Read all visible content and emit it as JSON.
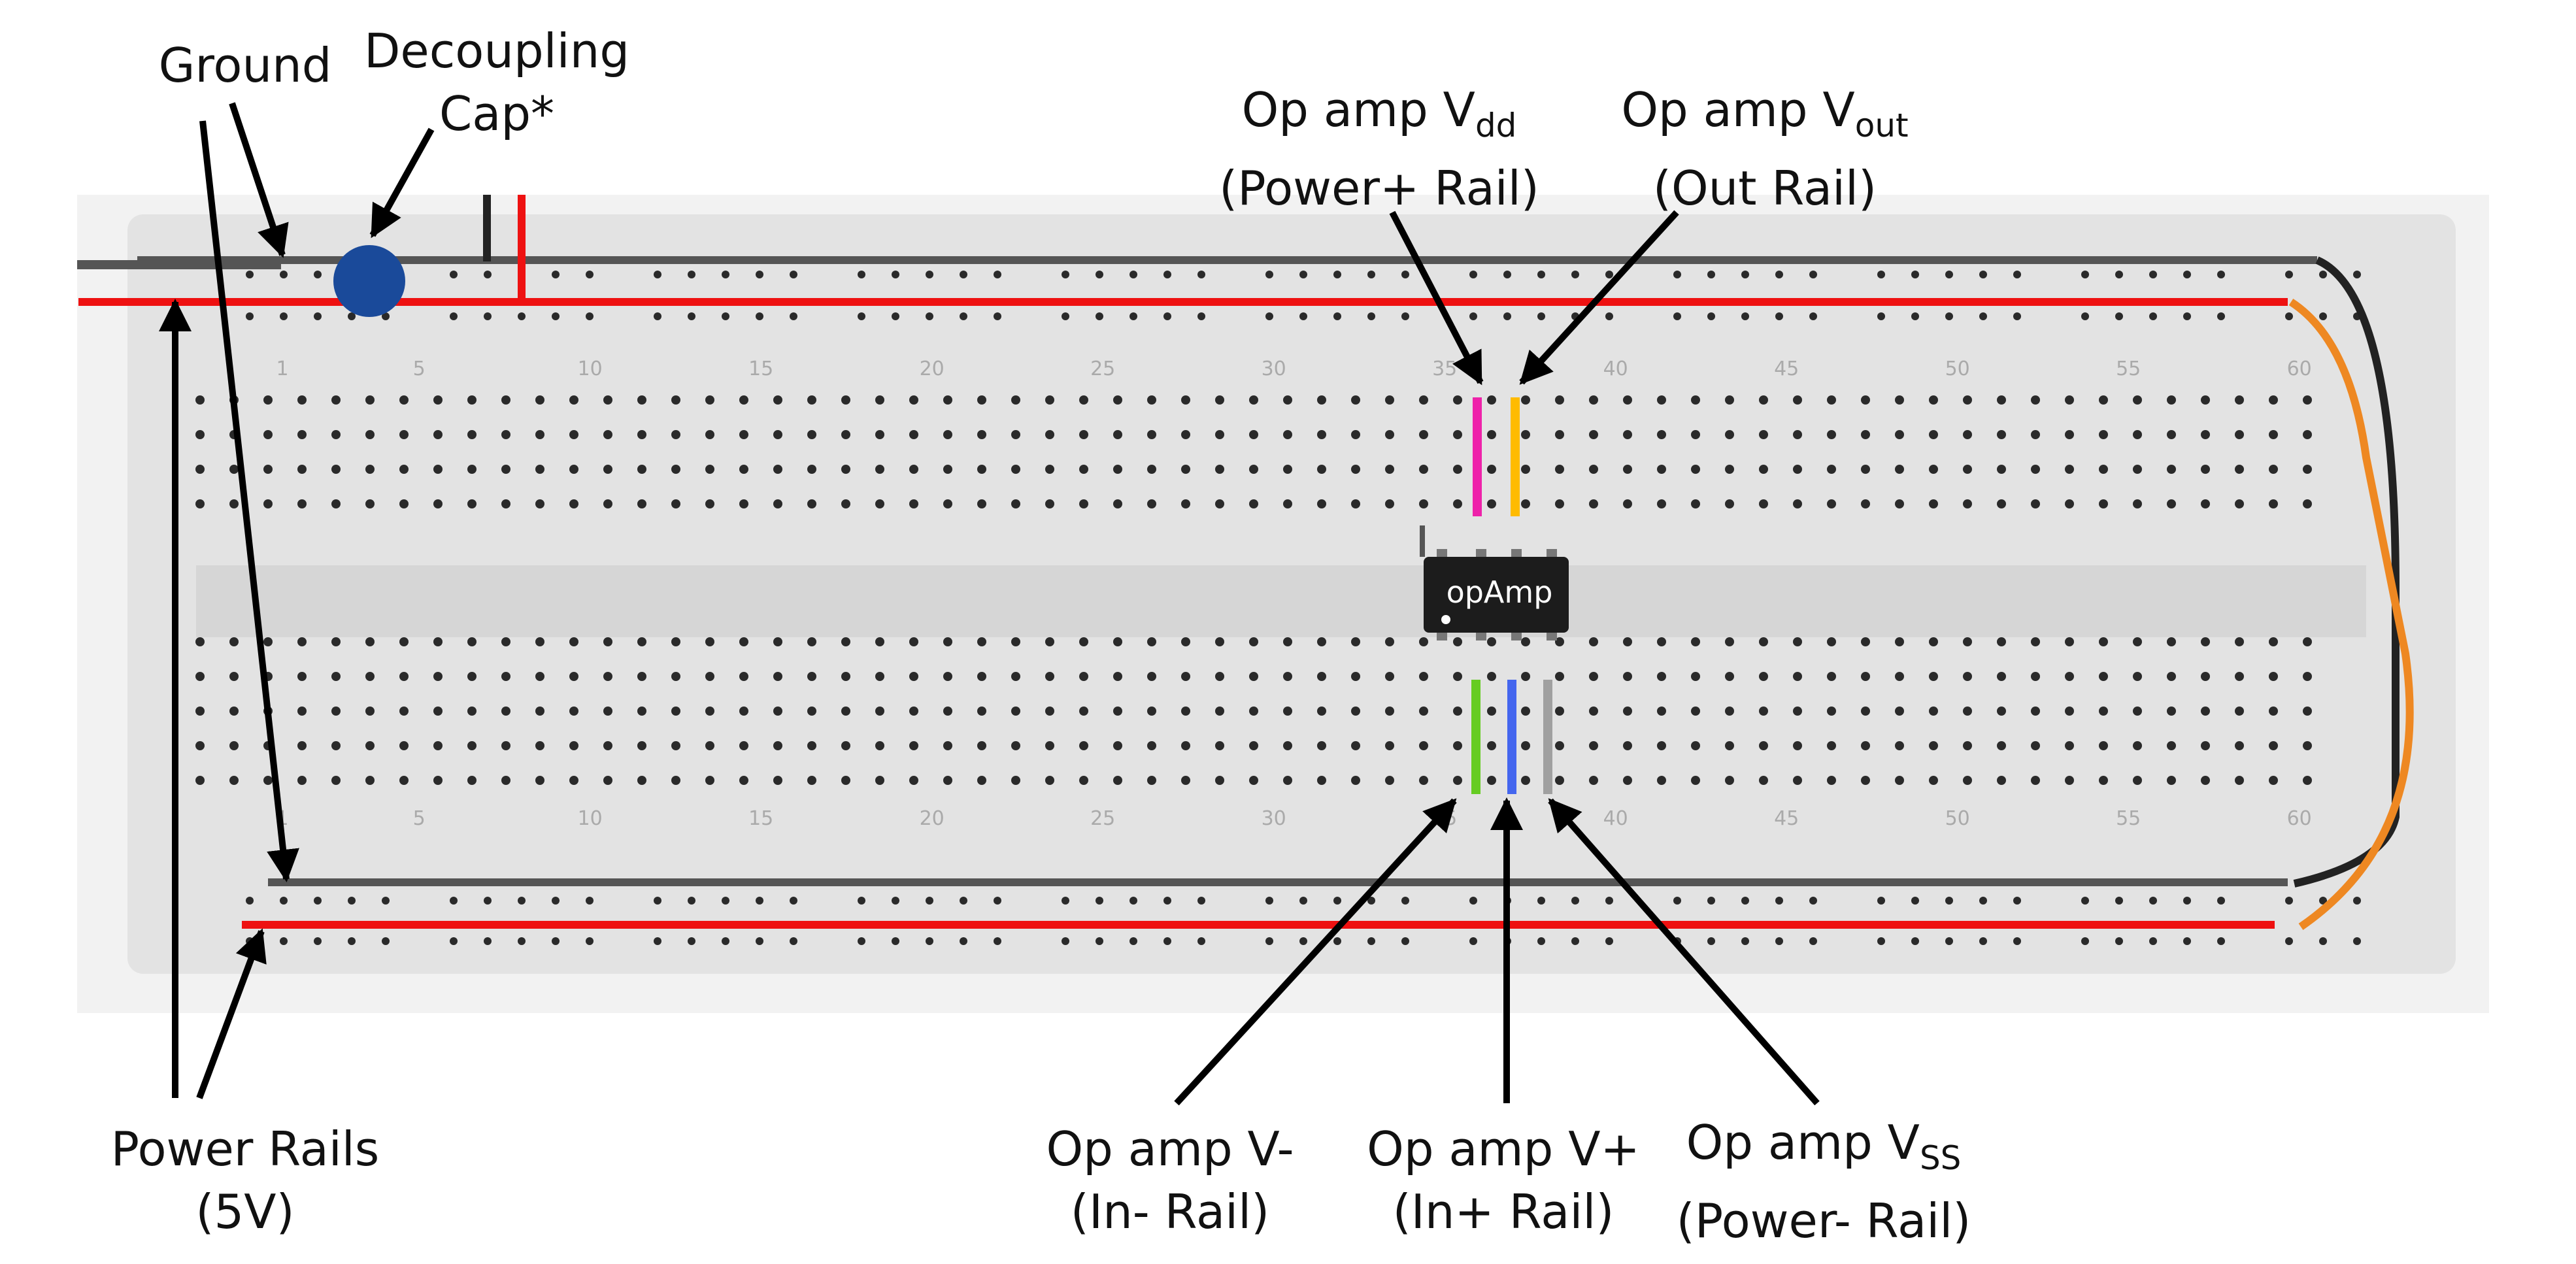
{
  "labels": {
    "ground": "Ground",
    "decoupling_line1": "Decoupling",
    "decoupling_line2": "Cap*",
    "vdd_prefix": "Op amp V",
    "vdd_sub": "dd",
    "vdd_line2": "(Power+ Rail)",
    "vout_prefix": "Op amp V",
    "vout_sub": "out",
    "vout_line2": "(Out Rail)",
    "power_rails_line1": "Power Rails",
    "power_rails_line2": "(5V)",
    "vminus_line1": "Op amp V-",
    "vminus_line2": "(In- Rail)",
    "vplus_line1": "Op amp V+",
    "vplus_line2": "(In+ Rail)",
    "vss_prefix": "Op amp V",
    "vss_sub": "SS",
    "vss_line2": "(Power- Rail)"
  },
  "chip_label": "opAmp",
  "column_numbers": [
    "1",
    "5",
    "10",
    "15",
    "20",
    "25",
    "30",
    "35",
    "40",
    "45",
    "50",
    "55",
    "60"
  ],
  "colors": {
    "board_outer": "#f2f2f2",
    "board_inner": "#e3e3e3",
    "rail_black": "#555555",
    "rail_red": "#ee1111",
    "hole": "#2a2a2a",
    "wire_vdd": "#ee22aa",
    "wire_vout": "#ffbb00",
    "wire_vminus": "#66cc22",
    "wire_vplus": "#4466ee",
    "wire_vss": "#a0a0a0",
    "wire_black": "#222222",
    "wire_orange": "#ee8822",
    "capacitor": "#1a4a9a",
    "chip": "#1c1c1c",
    "chip_text": "#ffffff",
    "arrow": "#000000",
    "column_number": "#aaaaaa"
  }
}
